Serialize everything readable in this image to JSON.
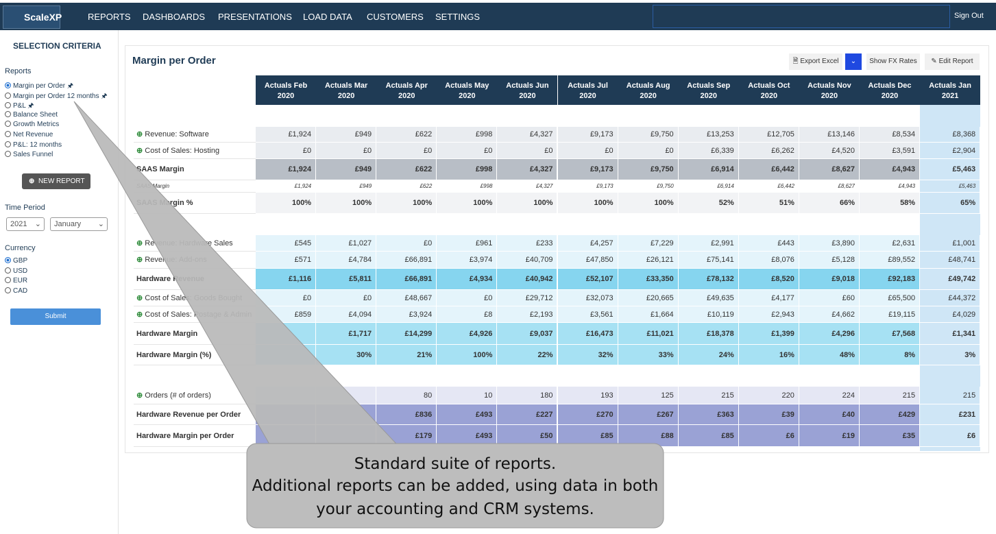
{
  "nav": {
    "brand": "ScaleXP",
    "items": [
      "REPORTS",
      "DASHBOARDS",
      "PRESENTATIONS",
      "LOAD DATA",
      "CUSTOMERS",
      "SETTINGS"
    ],
    "sign_out": "Sign Out"
  },
  "sidebar": {
    "title": "SELECTION CRITERIA",
    "reports_label": "Reports",
    "reports": [
      "Margin per Order",
      "Margin per Order 12 months",
      "P&L",
      "Balance Sheet",
      "Growth Metrics",
      "Net Revenue",
      "P&L: 12 months",
      "Sales Funnel"
    ],
    "new_report": "NEW REPORT",
    "time_period_label": "Time Period",
    "year": "2021",
    "month": "January",
    "currency_label": "Currency",
    "currencies": [
      "GBP",
      "USD",
      "EUR",
      "CAD"
    ],
    "submit": "Submit"
  },
  "report": {
    "title": "Margin per Order",
    "buttons": [
      "Export Excel",
      "Show FX Rates",
      "Edit Report"
    ],
    "columns": [
      "Actuals Feb 2020",
      "Actuals Mar 2020",
      "Actuals Apr 2020",
      "Actuals May 2020",
      "Actuals Jun 2020",
      "Actuals Jul 2020",
      "Actuals Aug 2020",
      "Actuals Sep 2020",
      "Actuals Oct 2020",
      "Actuals Nov 2020",
      "Actuals Dec 2020",
      "Actuals Jan 2021"
    ],
    "rows": [
      {
        "label": "Revenue: Software Subscriptions",
        "values": [
          "£1,924",
          "£949",
          "£622",
          "£998",
          "£4,327",
          "£9,173",
          "£9,750",
          "£13,253",
          "£12,705",
          "£13,146",
          "£8,534",
          "£8,368"
        ]
      },
      {
        "label": "Cost of Sales: Hosting",
        "values": [
          "£0",
          "£0",
          "£0",
          "£0",
          "£0",
          "£0",
          "£0",
          "£6,339",
          "£6,262",
          "£4,520",
          "£3,591",
          "£2,904"
        ]
      },
      {
        "label": "SAAS Margin",
        "values": [
          "£1,924",
          "£949",
          "£622",
          "£998",
          "£4,327",
          "£9,173",
          "£9,750",
          "£6,914",
          "£6,442",
          "£8,627",
          "£4,943",
          "£5,463"
        ]
      },
      {
        "label": "SAAS Margin",
        "values": [
          "£1,924",
          "£949",
          "£622",
          "£998",
          "£4,327",
          "£9,173",
          "£9,750",
          "£6,914",
          "£6,442",
          "£8,627",
          "£4,943",
          "£5,463"
        ]
      },
      {
        "label": "SAAS Margin %",
        "values": [
          "100%",
          "100%",
          "100%",
          "100%",
          "100%",
          "100%",
          "100%",
          "52%",
          "51%",
          "66%",
          "58%",
          "65%"
        ]
      },
      {
        "label": "Revenue: Hardware Sales",
        "values": [
          "£545",
          "£1,027",
          "£0",
          "£961",
          "£233",
          "£4,257",
          "£7,229",
          "£2,991",
          "£443",
          "£3,890",
          "£2,631",
          "£1,001"
        ]
      },
      {
        "label": "Revenue: Add-ons",
        "values": [
          "£571",
          "£4,784",
          "£66,891",
          "£3,974",
          "£40,709",
          "£47,850",
          "£26,121",
          "£75,141",
          "£8,076",
          "£5,128",
          "£89,552",
          "£48,741"
        ]
      },
      {
        "label": "Hardware Revenue",
        "values": [
          "£1,116",
          "£5,811",
          "£66,891",
          "£4,934",
          "£40,942",
          "£52,107",
          "£33,350",
          "£78,132",
          "£8,520",
          "£9,018",
          "£92,183",
          "£49,742"
        ]
      },
      {
        "label": "Cost of Sales: Goods Bought",
        "values": [
          "£0",
          "£0",
          "£48,667",
          "£0",
          "£29,712",
          "£32,073",
          "£20,665",
          "£49,635",
          "£4,177",
          "£60",
          "£65,500",
          "£44,372"
        ]
      },
      {
        "label": "Cost of Sales: Postage & Admin",
        "values": [
          "£859",
          "£4,094",
          "£3,924",
          "£8",
          "£2,193",
          "£3,561",
          "£1,664",
          "£10,119",
          "£2,943",
          "£4,662",
          "£19,115",
          "£4,029"
        ]
      },
      {
        "label": "Hardware Margin",
        "values": [
          null,
          "£1,717",
          "£14,299",
          "£4,926",
          "£9,037",
          "£16,473",
          "£11,021",
          "£18,378",
          "£1,399",
          "£4,296",
          "£7,568",
          "£1,341"
        ]
      },
      {
        "label": "Hardware Margin (%)",
        "values": [
          null,
          "30%",
          "21%",
          "100%",
          "22%",
          "32%",
          "33%",
          "24%",
          "16%",
          "48%",
          "8%",
          "3%"
        ]
      },
      {
        "label": "Orders (# of orders)",
        "values": [
          null,
          null,
          "80",
          "10",
          "180",
          "193",
          "125",
          "215",
          "220",
          "224",
          "215",
          "215"
        ]
      },
      {
        "label": "Hardware Revenue per Order",
        "values": [
          null,
          null,
          "£836",
          "£493",
          "£227",
          "£270",
          "£267",
          "£363",
          "£39",
          "£40",
          "£429",
          "£231"
        ]
      },
      {
        "label": "Hardware Margin per Order",
        "values": [
          null,
          null,
          "£179",
          "£493",
          "£50",
          "£85",
          "£88",
          "£85",
          "£6",
          "£19",
          "£35",
          "£6"
        ]
      }
    ]
  },
  "callout": [
    "Standard suite of reports.",
    "Additional reports can be added, using data in both",
    "your accounting and CRM systems."
  ]
}
